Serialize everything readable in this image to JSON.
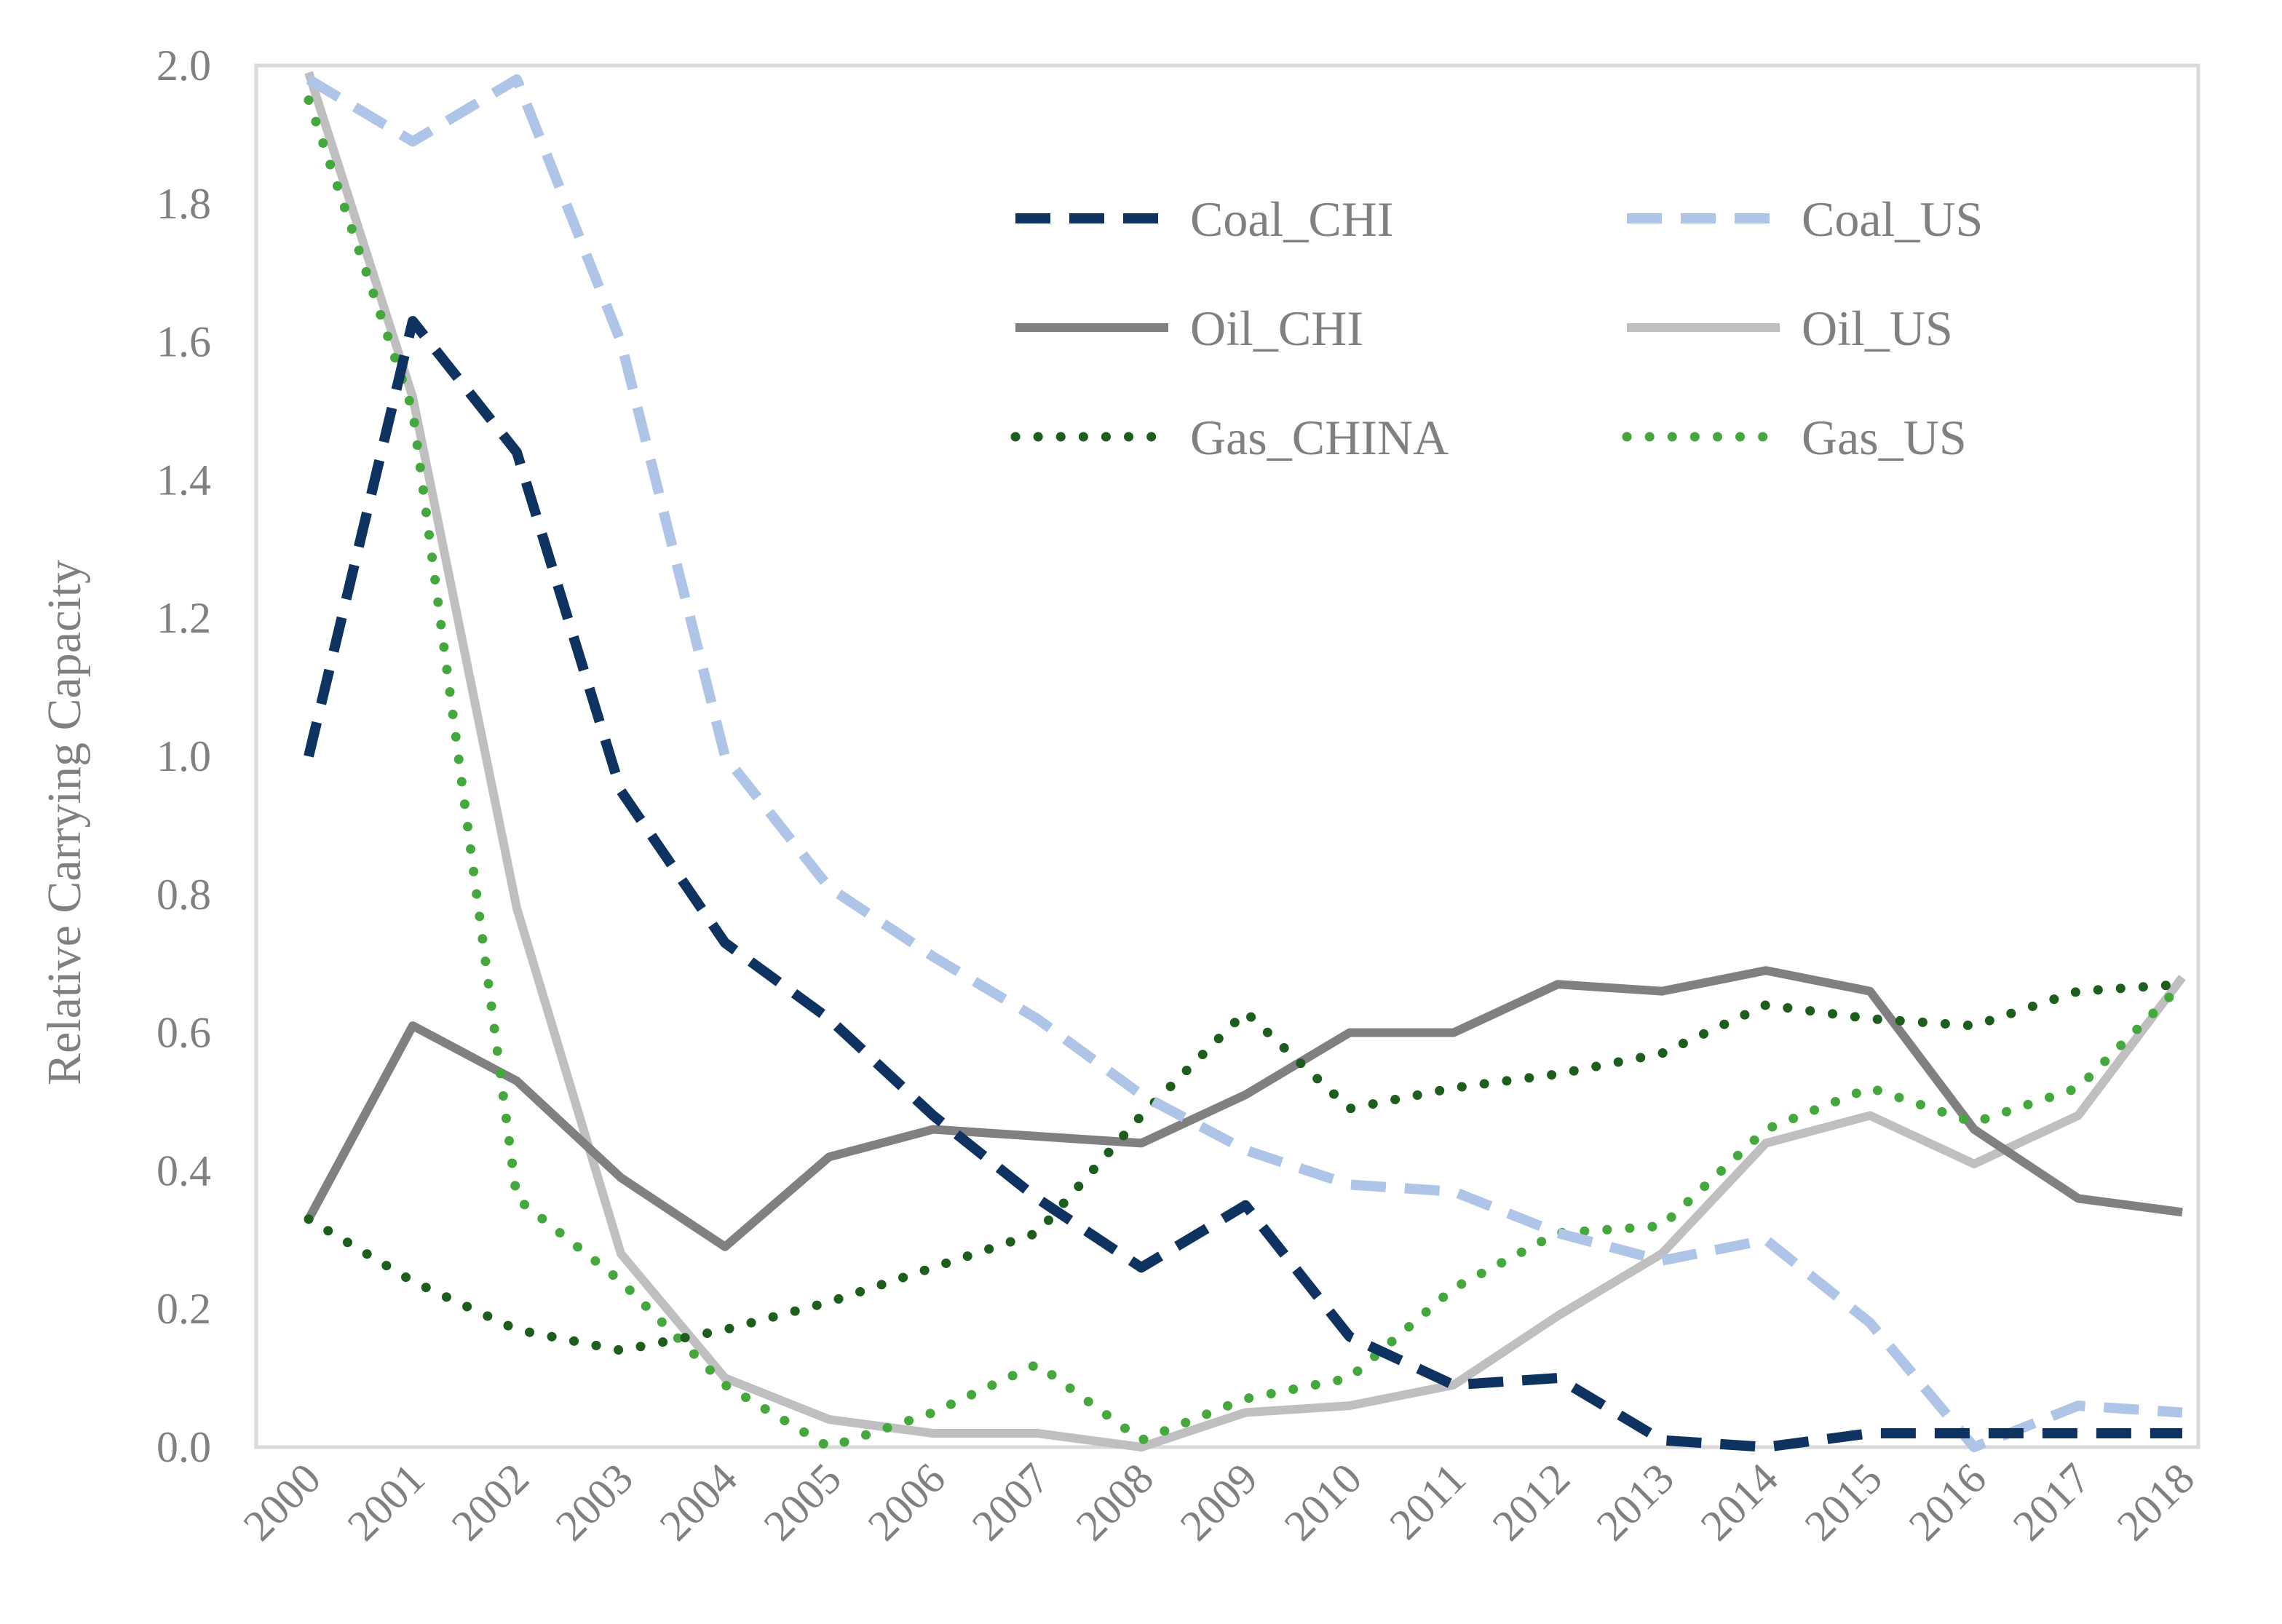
{
  "chart_data": {
    "type": "line",
    "title": "",
    "xlabel": "",
    "ylabel": "Relative Carrying Capacity",
    "ylim": [
      0,
      2.0
    ],
    "y_ticks": [
      "0.0",
      "0.2",
      "0.4",
      "0.6",
      "0.8",
      "1.0",
      "1.2",
      "1.4",
      "1.6",
      "1.8",
      "2.0"
    ],
    "categories": [
      "2000",
      "2001",
      "2002",
      "2003",
      "2004",
      "2005",
      "2006",
      "2007",
      "2008",
      "2009",
      "2010",
      "2011",
      "2012",
      "2013",
      "2014",
      "2015",
      "2016",
      "2017",
      "2018"
    ],
    "grid": false,
    "legend_position": "top-right",
    "series": [
      {
        "name": "Coal_CHI",
        "color": "#0e3360",
        "style": "dashed",
        "values": [
          1.0,
          1.63,
          1.44,
          0.95,
          0.73,
          0.62,
          0.48,
          0.36,
          0.26,
          0.35,
          0.16,
          0.09,
          0.1,
          0.01,
          0.0,
          0.02,
          0.02,
          0.02,
          0.02
        ]
      },
      {
        "name": "Coal_US",
        "color": "#aec5e8",
        "style": "dashed",
        "values": [
          1.98,
          1.89,
          1.98,
          1.6,
          1.0,
          0.81,
          0.71,
          0.62,
          0.51,
          0.43,
          0.38,
          0.37,
          0.31,
          0.27,
          0.3,
          0.18,
          0.0,
          0.06,
          0.05
        ]
      },
      {
        "name": "Oil_CHI",
        "color": "#808080",
        "style": "solid",
        "values": [
          0.33,
          0.61,
          0.53,
          0.39,
          0.29,
          0.42,
          0.46,
          0.45,
          0.44,
          0.51,
          0.6,
          0.6,
          0.67,
          0.66,
          0.69,
          0.66,
          0.46,
          0.36,
          0.34
        ]
      },
      {
        "name": "Oil_US",
        "color": "#bfbfbf",
        "style": "solid",
        "values": [
          1.99,
          1.52,
          0.78,
          0.28,
          0.1,
          0.04,
          0.02,
          0.02,
          0.0,
          0.05,
          0.06,
          0.09,
          0.19,
          0.28,
          0.44,
          0.48,
          0.41,
          0.48,
          0.68
        ]
      },
      {
        "name": "Gas_CHINA",
        "color": "#1d5e1c",
        "style": "dotted",
        "values": [
          0.33,
          0.24,
          0.17,
          0.14,
          0.17,
          0.21,
          0.26,
          0.31,
          0.48,
          0.63,
          0.49,
          0.52,
          0.54,
          0.57,
          0.64,
          0.62,
          0.61,
          0.66,
          0.67
        ]
      },
      {
        "name": "Gas_US",
        "color": "#44a83c",
        "style": "dotted",
        "values": [
          1.95,
          1.5,
          0.36,
          0.24,
          0.09,
          0.0,
          0.05,
          0.12,
          0.01,
          0.07,
          0.1,
          0.23,
          0.31,
          0.32,
          0.46,
          0.52,
          0.47,
          0.52,
          0.67
        ]
      }
    ]
  }
}
